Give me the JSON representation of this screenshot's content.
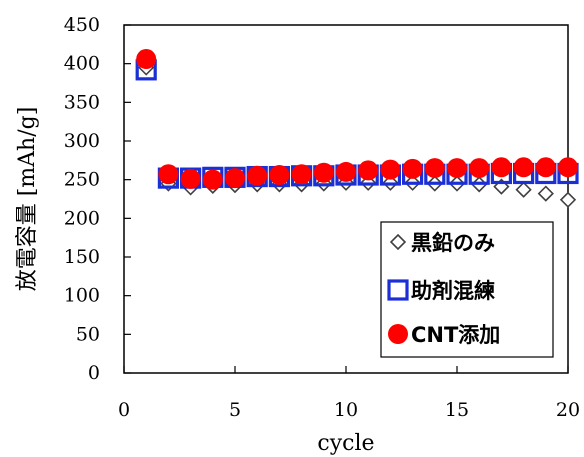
{
  "chart_data": {
    "type": "scatter",
    "xlabel": "cycle",
    "ylabel": "放電容量 [mAh/g]",
    "xlim": [
      0,
      20
    ],
    "ylim": [
      0,
      450
    ],
    "x_ticks": [
      0,
      5,
      10,
      15,
      20
    ],
    "y_ticks": [
      0,
      50,
      100,
      150,
      200,
      250,
      300,
      350,
      400,
      450
    ],
    "grid": false,
    "legend_position": "bottom-right",
    "series": [
      {
        "name": "黒鉛のみ",
        "marker": "diamond-open",
        "color": "#404040",
        "x": [
          1,
          2,
          3,
          4,
          5,
          6,
          7,
          8,
          9,
          10,
          11,
          12,
          13,
          14,
          15,
          16,
          17,
          18,
          19,
          20
        ],
        "y": [
          395,
          245,
          240,
          242,
          243,
          244,
          244,
          244,
          245,
          246,
          246,
          246,
          246,
          245,
          245,
          244,
          241,
          237,
          232,
          224
        ]
      },
      {
        "name": "助剤混練",
        "marker": "square-open",
        "color": "#1a2fd6",
        "x": [
          1,
          2,
          3,
          4,
          5,
          6,
          7,
          8,
          9,
          10,
          11,
          12,
          13,
          14,
          15,
          16,
          17,
          18,
          19,
          20
        ],
        "y": [
          392,
          252,
          252,
          253,
          253,
          254,
          254,
          255,
          255,
          256,
          256,
          256,
          257,
          257,
          257,
          257,
          258,
          258,
          258,
          258
        ]
      },
      {
        "name": "CNT添加",
        "marker": "circle-filled",
        "color": "#ff0000",
        "x": [
          1,
          2,
          3,
          4,
          5,
          6,
          7,
          8,
          9,
          10,
          11,
          12,
          13,
          14,
          15,
          16,
          17,
          18,
          19,
          20
        ],
        "y": [
          406,
          257,
          251,
          250,
          252,
          255,
          256,
          257,
          259,
          260,
          262,
          263,
          264,
          265,
          265,
          265,
          266,
          266,
          266,
          266
        ]
      }
    ]
  }
}
